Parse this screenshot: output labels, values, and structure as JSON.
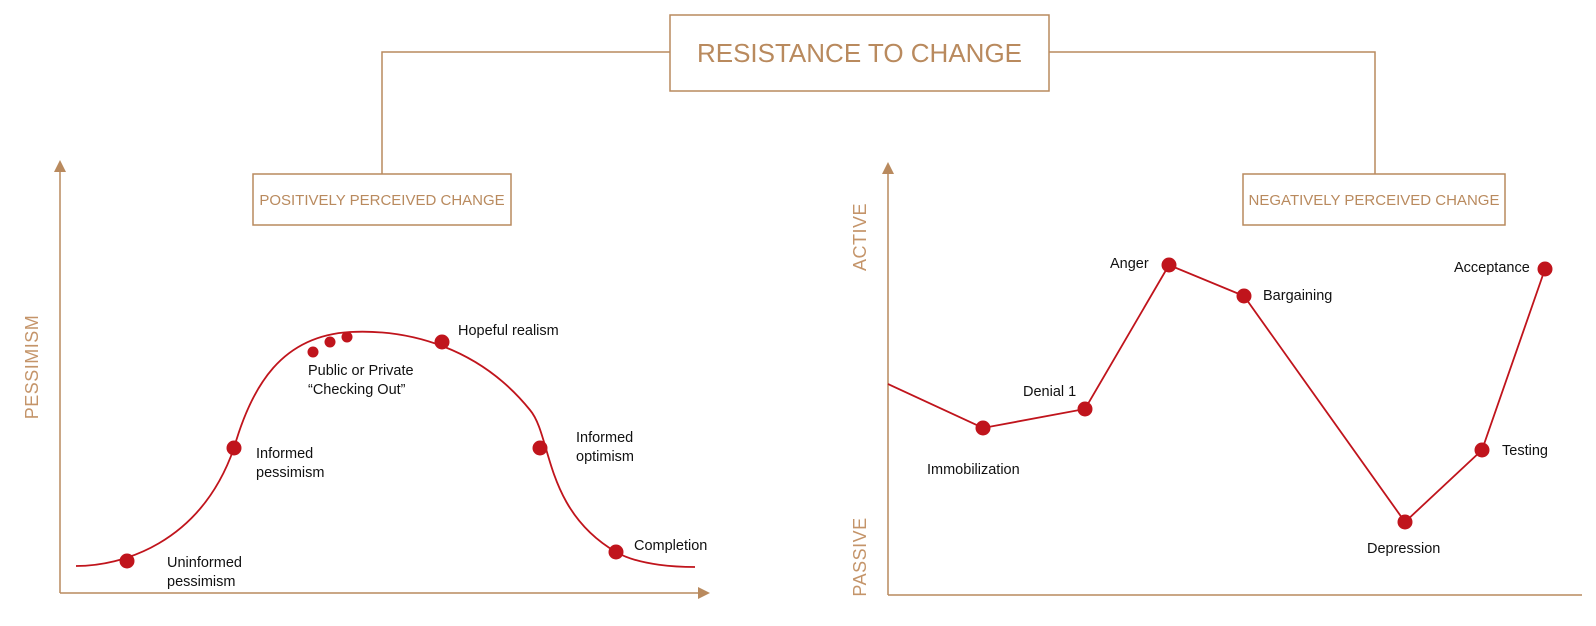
{
  "title": "RESISTANCE TO CHANGE",
  "colors": {
    "brand": "#b98a5e",
    "curve": "#c0141c",
    "text": "#111111"
  },
  "left_panel": {
    "heading": "POSITIVELY PERCEIVED CHANGE",
    "y_axis_label": "PESSIMISM",
    "points": [
      {
        "label": [
          "Uninformed",
          "pessimism"
        ]
      },
      {
        "label": [
          "Informed",
          "pessimism"
        ]
      },
      {
        "label": [
          "Public or Private",
          "“Checking Out”"
        ]
      },
      {
        "label": [
          "Hopeful realism"
        ]
      },
      {
        "label": [
          "Informed",
          "optimism"
        ]
      },
      {
        "label": [
          "Completion"
        ]
      }
    ]
  },
  "right_panel": {
    "heading": "NEGATIVELY PERCEIVED CHANGE",
    "y_axis_top_label": "ACTIVE",
    "y_axis_bottom_label": "PASSIVE",
    "stages": [
      {
        "label": "Immobilization"
      },
      {
        "label": "Denial 1"
      },
      {
        "label": "Anger"
      },
      {
        "label": "Bargaining"
      },
      {
        "label": "Depression"
      },
      {
        "label": "Testing"
      },
      {
        "label": "Acceptance"
      }
    ]
  }
}
